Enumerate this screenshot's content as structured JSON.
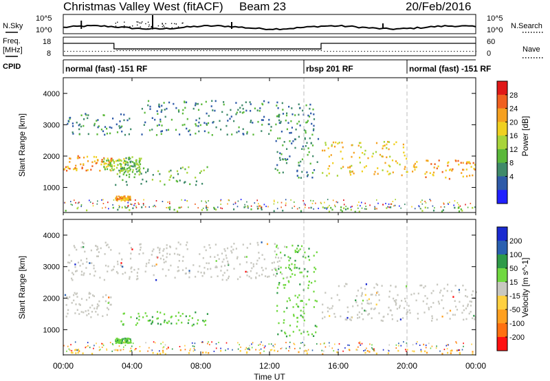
{
  "header": {
    "title": "Christmas Valley West (fitACF)",
    "beam": "Beam 23",
    "date": "20/Feb/2016"
  },
  "strip_labels": {
    "nsky": "N.Sky",
    "nsearch": "N.Search",
    "freq_line1": "Freq.",
    "freq_line2": "[MHz]",
    "nave": "Nave",
    "cpid": "CPID"
  },
  "strip_ticks": {
    "noise_top": "10^5",
    "noise_bottom": "10^0",
    "freq_top": "18",
    "freq_bottom": "8",
    "nave_top": "60",
    "nave_bottom": "0"
  },
  "cpid_segments": [
    {
      "label": "normal (fast) -151 RF",
      "start_hour": 0
    },
    {
      "label": "rbsp 201 RF",
      "start_hour": 14
    },
    {
      "label": "normal (fast) -151 RF",
      "start_hour": 20
    }
  ],
  "time_axis": {
    "label": "Time UT",
    "ticks": [
      "00:00",
      "04:00",
      "08:00",
      "12:00",
      "16:00",
      "20:00",
      "00:00"
    ]
  },
  "colors": {
    "power": [
      "#2020ff",
      "#2e5aa8",
      "#3f8a6a",
      "#5ab83a",
      "#a8d43a",
      "#f0d020",
      "#f5a020",
      "#f06020",
      "#e01818"
    ],
    "velocity": [
      "#ff1010",
      "#ff7010",
      "#ffa020",
      "#ffd040",
      "#c8c8c0",
      "#70d840",
      "#2e9a48",
      "#2a60b0",
      "#1a2ad0"
    ]
  },
  "chart_data": [
    {
      "type": "heatmap",
      "title": "",
      "xlabel": "Time UT",
      "ylabel": "Slant Range [km]",
      "colorbar_label": "Power [dB]",
      "colorbar_ticks": [
        "28",
        "24",
        "20",
        "16",
        "12",
        "8",
        "4"
      ],
      "xlim": [
        0,
        24
      ],
      "ylim": [
        200,
        4500
      ],
      "y_ticks": [
        "1000",
        "2000",
        "3000",
        "4000"
      ],
      "echo_regions": [
        {
          "t": [
            0.0,
            2.8
          ],
          "range": [
            1550,
            2050
          ],
          "power": 22
        },
        {
          "t": [
            2.3,
            3.6
          ],
          "range": [
            1550,
            1950
          ],
          "power": 14
        },
        {
          "t": [
            3.5,
            4.5
          ],
          "range": [
            1500,
            2000
          ],
          "power": 10
        },
        {
          "t": [
            3.0,
            8.5
          ],
          "range": [
            1100,
            1700
          ],
          "power": 10
        },
        {
          "t": [
            3.0,
            3.9
          ],
          "range": [
            600,
            750
          ],
          "power": 22
        },
        {
          "t": [
            0.2,
            4.0
          ],
          "range": [
            2700,
            3400
          ],
          "power": 8
        },
        {
          "t": [
            4.5,
            13.0
          ],
          "range": [
            2700,
            3800
          ],
          "power": 8
        },
        {
          "t": [
            12.3,
            14.8
          ],
          "range": [
            1300,
            3700
          ],
          "power": 8
        },
        {
          "t": [
            15.0,
            20.0
          ],
          "range": [
            1400,
            2500
          ],
          "power": 18
        },
        {
          "t": [
            20.0,
            24.0
          ],
          "range": [
            1300,
            1900
          ],
          "power": 20
        },
        {
          "t": [
            0.0,
            24.0
          ],
          "range": [
            250,
            400
          ],
          "power": 12
        }
      ]
    },
    {
      "type": "heatmap",
      "title": "",
      "xlabel": "Time UT",
      "ylabel": "Slant Range [km]",
      "colorbar_label": "Velocity [m s^-1]",
      "colorbar_ticks": [
        "200",
        "100",
        "50",
        "15",
        "-15",
        "-50",
        "-100",
        "-200"
      ],
      "xlim": [
        0,
        24
      ],
      "ylim": [
        200,
        4500
      ],
      "y_ticks": [
        "1000",
        "2000",
        "3000",
        "4000"
      ],
      "echo_regions": [
        {
          "t": [
            0.0,
            2.8
          ],
          "range": [
            1400,
            2200
          ],
          "velocity": 0
        },
        {
          "t": [
            3.2,
            8.5
          ],
          "range": [
            1150,
            1600
          ],
          "velocity": 40
        },
        {
          "t": [
            3.0,
            3.9
          ],
          "range": [
            600,
            750
          ],
          "velocity": 60
        },
        {
          "t": [
            0.2,
            13.0
          ],
          "range": [
            2600,
            3800
          ],
          "velocity": 0
        },
        {
          "t": [
            12.3,
            14.8
          ],
          "range": [
            800,
            3700
          ],
          "velocity": 40
        },
        {
          "t": [
            15.0,
            24.0
          ],
          "range": [
            1300,
            2500
          ],
          "velocity": 0
        },
        {
          "t": [
            0.0,
            24.0
          ],
          "range": [
            250,
            400
          ],
          "velocity": -40
        }
      ]
    }
  ]
}
